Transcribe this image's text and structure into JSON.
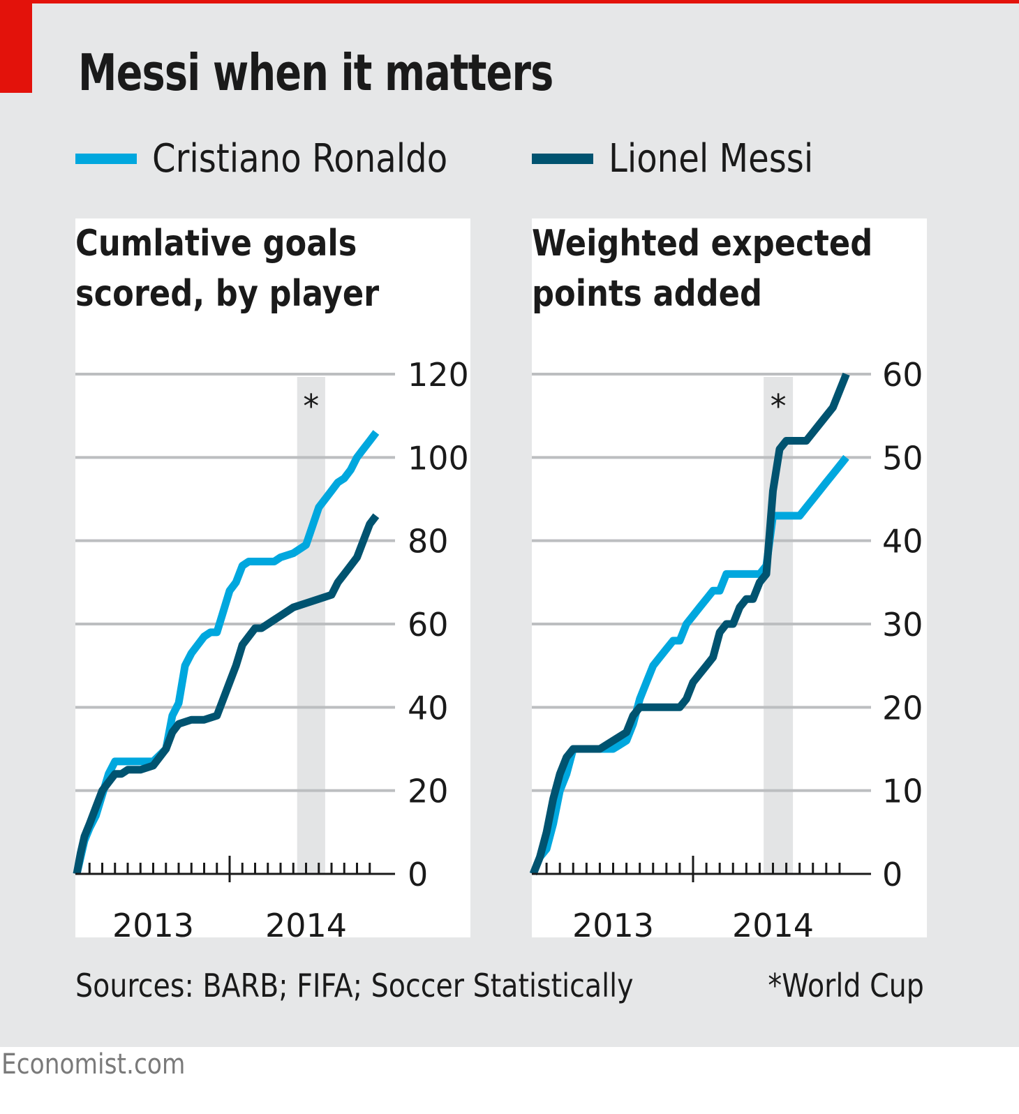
{
  "header": {
    "title": "Messi when it matters"
  },
  "legend": [
    {
      "name": "Cristiano Ronaldo",
      "color": "#00a7de"
    },
    {
      "name": "Lionel Messi",
      "color": "#005370"
    }
  ],
  "footer": {
    "source": "Sources: BARB; FIFA; Soccer Statistically",
    "footnote": "*World Cup",
    "brand": "Economist.com"
  },
  "colors": {
    "accent_red": "#e3120b",
    "background": "#e6e7e8",
    "gridline": "#bcbec0",
    "world_cup_band": "#e3e4e5"
  },
  "chart_data": [
    {
      "type": "line",
      "title": "Cumlative goals scored, by player",
      "title_lines": [
        "Cumlative goals",
        "scored, by player"
      ],
      "xlabel": "",
      "ylabel": "",
      "x_unit": "months since start of 2013",
      "xlim": [
        0,
        24
      ],
      "x_tick_labels": [
        {
          "label": "2013",
          "at": 6
        },
        {
          "label": "2014",
          "at": 18
        }
      ],
      "x_major_tick": 12,
      "x_minor_step": 1,
      "ylim": [
        0,
        120
      ],
      "yticks": [
        0,
        20,
        40,
        60,
        80,
        100,
        120
      ],
      "y_axis_side": "right",
      "grid": true,
      "annotation": {
        "label": "*",
        "band": [
          17.3,
          19.5
        ],
        "meaning": "World Cup"
      },
      "series": [
        {
          "name": "Cristiano Ronaldo",
          "x": [
            0,
            0.3,
            0.6,
            1.0,
            1.5,
            2.0,
            2.5,
            3.0,
            3.5,
            4.0,
            5.0,
            6.0,
            7.0,
            7.5,
            8.0,
            8.5,
            9.0,
            9.5,
            10.0,
            10.5,
            11.0,
            11.5,
            12.0,
            12.5,
            13.0,
            13.5,
            14.0,
            14.5,
            15.0,
            15.5,
            16.0,
            17.0,
            18.0,
            19.0,
            20.0,
            20.5,
            21.0,
            21.5,
            22.0,
            22.5,
            23.0,
            23.5
          ],
          "values": [
            0,
            4,
            8,
            11,
            14,
            19,
            24,
            27,
            27,
            27,
            27,
            27,
            30,
            38,
            41,
            50,
            53,
            55,
            57,
            58,
            58,
            63,
            68,
            70,
            74,
            75,
            75,
            75,
            75,
            75,
            76,
            77,
            79,
            88,
            92,
            94,
            95,
            97,
            100,
            102,
            104,
            106
          ]
        },
        {
          "name": "Lionel Messi",
          "x": [
            0,
            0.3,
            0.6,
            1.0,
            1.5,
            2.0,
            2.5,
            3.0,
            3.5,
            4.0,
            5.0,
            6.0,
            7.0,
            7.5,
            8.0,
            9.0,
            10.0,
            11.0,
            11.5,
            12.0,
            12.5,
            13.0,
            13.5,
            14.0,
            14.5,
            15.0,
            15.5,
            16.0,
            17.0,
            18.0,
            19.0,
            20.0,
            20.5,
            21.0,
            21.5,
            22.0,
            22.5,
            23.0,
            23.5
          ],
          "values": [
            0,
            5,
            9,
            12,
            16,
            20,
            22,
            24,
            24,
            25,
            25,
            26,
            30,
            34,
            36,
            37,
            37,
            38,
            42,
            46,
            50,
            55,
            57,
            59,
            59,
            60,
            61,
            62,
            64,
            65,
            66,
            67,
            70,
            72,
            74,
            76,
            80,
            84,
            86
          ]
        }
      ]
    },
    {
      "type": "line",
      "title": "Weighted expected points added",
      "title_lines": [
        "Weighted expected",
        "points added"
      ],
      "xlabel": "",
      "ylabel": "",
      "x_unit": "months since start of 2013",
      "xlim": [
        0,
        24
      ],
      "x_tick_labels": [
        {
          "label": "2013",
          "at": 6
        },
        {
          "label": "2014",
          "at": 18
        }
      ],
      "x_major_tick": 12,
      "x_minor_step": 1,
      "ylim": [
        0,
        60
      ],
      "yticks": [
        0,
        10,
        20,
        30,
        40,
        50,
        60
      ],
      "y_axis_side": "right",
      "grid": true,
      "annotation": {
        "label": "*",
        "band": [
          17.3,
          19.5
        ],
        "meaning": "World Cup"
      },
      "series": [
        {
          "name": "Cristiano Ronaldo",
          "x": [
            0,
            0.5,
            1.0,
            1.5,
            2.0,
            2.5,
            3.0,
            3.5,
            4.0,
            5.0,
            6.0,
            7.0,
            7.5,
            8.0,
            8.5,
            9.0,
            9.5,
            10.0,
            10.5,
            11.0,
            11.5,
            12.0,
            12.5,
            13.0,
            13.5,
            14.0,
            14.5,
            15.0,
            15.5,
            16.0,
            17.0,
            17.5,
            18.0,
            18.5,
            19.0,
            19.5,
            20.0,
            20.5,
            21.0,
            21.5,
            22.0,
            22.5,
            23.0,
            23.5
          ],
          "values": [
            0,
            2,
            3,
            6,
            10,
            12,
            15,
            15,
            15,
            15,
            15,
            16,
            18,
            21,
            23,
            25,
            26,
            27,
            28,
            28,
            30,
            31,
            32,
            33,
            34,
            34,
            36,
            36,
            36,
            36,
            36,
            37,
            43,
            43,
            43,
            43,
            43,
            44,
            45,
            46,
            47,
            48,
            49,
            50
          ]
        },
        {
          "name": "Lionel Messi",
          "x": [
            0,
            0.5,
            1.0,
            1.5,
            2.0,
            2.5,
            3.0,
            3.5,
            4.0,
            5.0,
            6.0,
            7.0,
            7.5,
            8.0,
            9.0,
            10.0,
            10.5,
            11.0,
            11.5,
            12.0,
            12.5,
            13.0,
            13.5,
            14.0,
            14.5,
            15.0,
            15.5,
            16.0,
            16.5,
            17.0,
            17.5,
            18.0,
            18.5,
            19.0,
            20.0,
            20.5,
            21.0,
            21.5,
            22.0,
            22.5,
            23.0,
            23.5
          ],
          "values": [
            0,
            2,
            5,
            9,
            12,
            14,
            15,
            15,
            15,
            15,
            16,
            17,
            19,
            20,
            20,
            20,
            20,
            20,
            21,
            23,
            24,
            25,
            26,
            29,
            30,
            30,
            32,
            33,
            33,
            35,
            36,
            46,
            51,
            52,
            52,
            52,
            53,
            54,
            55,
            56,
            58,
            60
          ]
        }
      ]
    }
  ]
}
